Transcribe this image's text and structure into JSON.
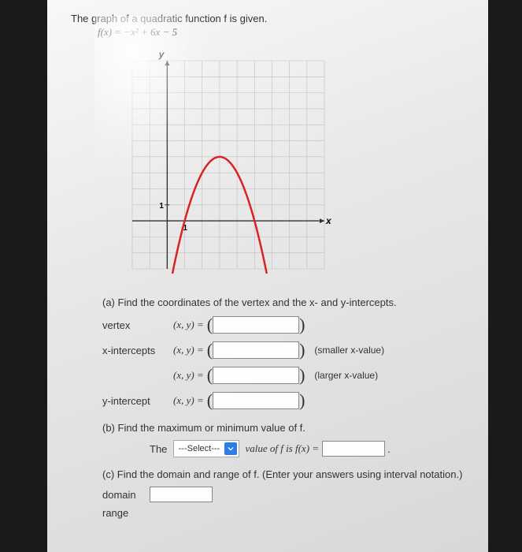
{
  "intro": "The graph of a quadratic function f is given.",
  "formula": "f(x) = −x² + 6x − 5",
  "graph": {
    "type": "line",
    "xlabel": "x",
    "ylabel": "y",
    "xlim": [
      -2,
      9
    ],
    "ylim": [
      -3,
      10
    ],
    "xtick_step": 1,
    "ytick_step": 1,
    "tick_labels": {
      "x": [
        "1"
      ],
      "y": [
        "1"
      ]
    },
    "grid_color": "#bfbfbf",
    "axis_color": "#333333",
    "background_color": "#f0f0f0",
    "curve_color": "#d92323",
    "curve_width": 2.5,
    "function": "-(x-3)^2 + 4",
    "sample_points": [
      [
        0.5,
        -2.25
      ],
      [
        1,
        0
      ],
      [
        1.5,
        1.75
      ],
      [
        2,
        3
      ],
      [
        2.5,
        3.75
      ],
      [
        3,
        4
      ],
      [
        3.5,
        3.75
      ],
      [
        4,
        3
      ],
      [
        4.5,
        1.75
      ],
      [
        5,
        0
      ],
      [
        5.5,
        -2.25
      ]
    ]
  },
  "partA": {
    "prompt": "(a) Find the coordinates of the vertex and the x- and y-intercepts.",
    "rows": [
      {
        "label": "vertex",
        "note": ""
      },
      {
        "label": "x-intercepts",
        "note": "(smaller x-value)"
      },
      {
        "label": "",
        "note": "(larger x-value)"
      },
      {
        "label": "y-intercept",
        "note": ""
      }
    ],
    "xy_text": "(x, y)  ="
  },
  "partB": {
    "prompt": "(b) Find the maximum or minimum value of f.",
    "prefix": "The",
    "select_placeholder": "---Select---",
    "mid": "value of f is f(x) =",
    "suffix": "."
  },
  "partC": {
    "prompt": "(c) Find the domain and range of f. (Enter your answers using interval notation.)",
    "domain_label": "domain",
    "range_label": "range"
  }
}
